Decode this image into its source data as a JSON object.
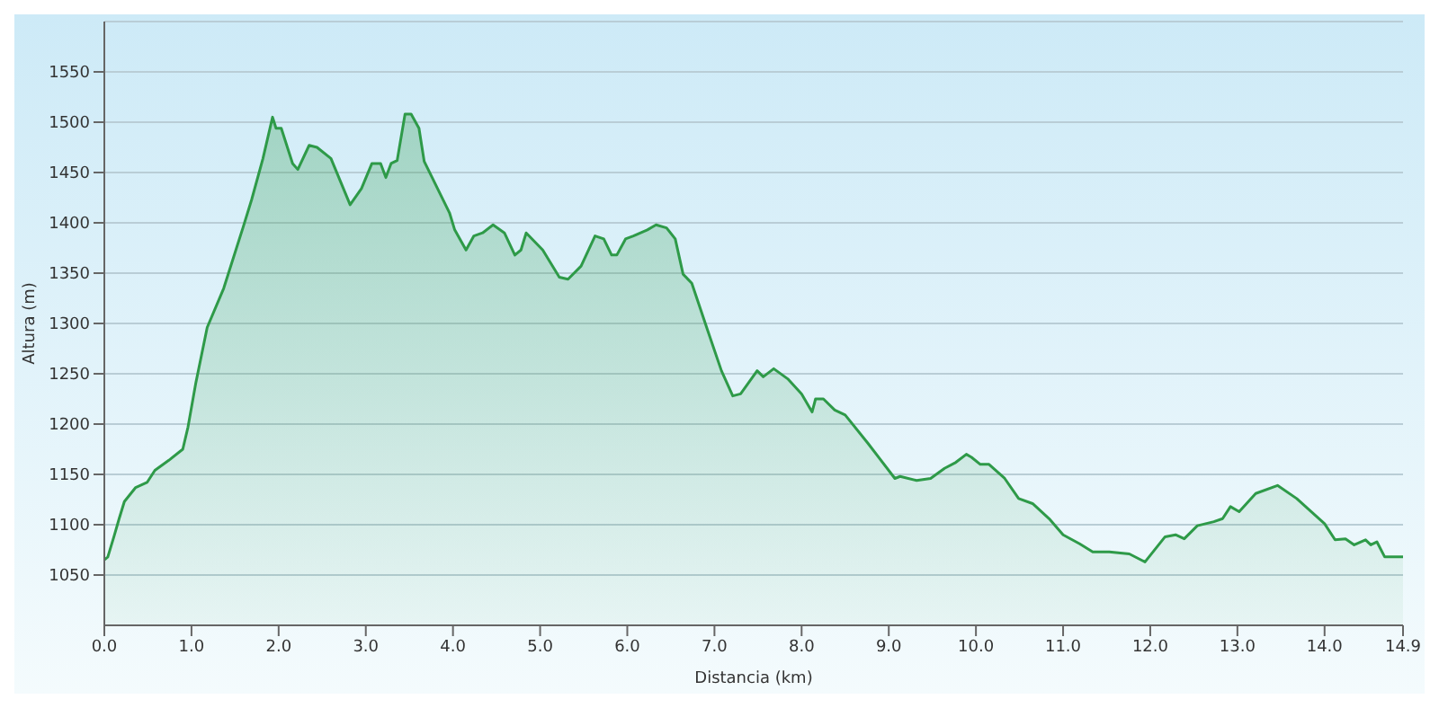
{
  "chart_data": {
    "type": "area",
    "xlabel": "Distancia  (km)",
    "ylabel": "Altura (m)",
    "xlim": [
      0,
      14.9
    ],
    "ylim": [
      1000,
      1600
    ],
    "xticks": [
      {
        "value": 0,
        "label": "0.0"
      },
      {
        "value": 1,
        "label": "1.0"
      },
      {
        "value": 2,
        "label": "2.0"
      },
      {
        "value": 3,
        "label": "3.0"
      },
      {
        "value": 4,
        "label": "4.0"
      },
      {
        "value": 5,
        "label": "5.0"
      },
      {
        "value": 6,
        "label": "6.0"
      },
      {
        "value": 7,
        "label": "7.0"
      },
      {
        "value": 8,
        "label": "8.0"
      },
      {
        "value": 9,
        "label": "9.0"
      },
      {
        "value": 10,
        "label": "10.0"
      },
      {
        "value": 11,
        "label": "11.0"
      },
      {
        "value": 12,
        "label": "12.0"
      },
      {
        "value": 13,
        "label": "13.0"
      },
      {
        "value": 14,
        "label": "14.0"
      },
      14.9
    ],
    "yticks": [
      1050,
      1100,
      1150,
      1200,
      1250,
      1300,
      1350,
      1400,
      1450,
      1500,
      1550
    ],
    "grid": "y",
    "marker": "none",
    "line_style": "solid",
    "x": [
      0,
      0.04,
      0.11,
      0.17,
      0.23,
      0.36,
      0.49,
      0.58,
      0.74,
      0.9,
      0.96,
      1.05,
      1.18,
      1.37,
      1.59,
      1.69,
      1.82,
      1.93,
      1.97,
      2.03,
      2.16,
      2.22,
      2.35,
      2.44,
      2.6,
      2.82,
      2.95,
      3.07,
      3.17,
      3.23,
      3.29,
      3.36,
      3.45,
      3.52,
      3.61,
      3.67,
      3.96,
      4.02,
      4.15,
      4.24,
      4.34,
      4.46,
      4.59,
      4.71,
      4.78,
      4.84,
      5.03,
      5.22,
      5.32,
      5.47,
      5.63,
      5.73,
      5.82,
      5.88,
      5.98,
      6.07,
      6.23,
      6.33,
      6.45,
      6.55,
      6.64,
      6.74,
      6.93,
      7.08,
      7.21,
      7.3,
      7.49,
      7.56,
      7.68,
      7.84,
      8.0,
      8.12,
      8.16,
      8.25,
      8.38,
      8.5,
      8.76,
      9.07,
      9.13,
      9.32,
      9.48,
      9.64,
      9.77,
      9.89,
      9.95,
      10.05,
      10.15,
      10.33,
      10.49,
      10.65,
      10.84,
      11.0,
      11.19,
      11.34,
      11.53,
      11.76,
      11.94,
      12.17,
      12.29,
      12.39,
      12.54,
      12.73,
      12.83,
      12.92,
      13.02,
      13.21,
      13.46,
      13.68,
      14.0,
      14.12,
      14.24,
      14.34,
      14.47,
      14.53,
      14.6,
      14.69,
      14.9
    ],
    "series": [
      {
        "color": "#2e9a48",
        "values": [
          1065,
          1068,
          1088,
          1106,
          1123,
          1137,
          1142,
          1154,
          1164,
          1175,
          1197,
          1241,
          1296,
          1335,
          1395,
          1423,
          1464,
          1505,
          1494,
          1494,
          1459,
          1453,
          1477,
          1475,
          1464,
          1418,
          1434,
          1459,
          1459,
          1445,
          1459,
          1462,
          1508,
          1508,
          1494,
          1461,
          1410,
          1393,
          1373,
          1387,
          1390,
          1398,
          1390,
          1368,
          1373,
          1390,
          1373,
          1346,
          1344,
          1357,
          1387,
          1384,
          1368,
          1368,
          1384,
          1387,
          1393,
          1398,
          1395,
          1384,
          1349,
          1340,
          1291,
          1253,
          1228,
          1230,
          1253,
          1247,
          1255,
          1245,
          1230,
          1212,
          1225,
          1225,
          1214,
          1209,
          1181,
          1146,
          1148,
          1144,
          1146,
          1156,
          1162,
          1170,
          1167,
          1160,
          1160,
          1146,
          1126,
          1121,
          1106,
          1090,
          1081,
          1073,
          1073,
          1071,
          1063,
          1088,
          1090,
          1086,
          1099,
          1103,
          1106,
          1118,
          1113,
          1131,
          1139,
          1126,
          1101,
          1085,
          1086,
          1080,
          1085,
          1080,
          1083,
          1068,
          1068
        ]
      }
    ]
  }
}
